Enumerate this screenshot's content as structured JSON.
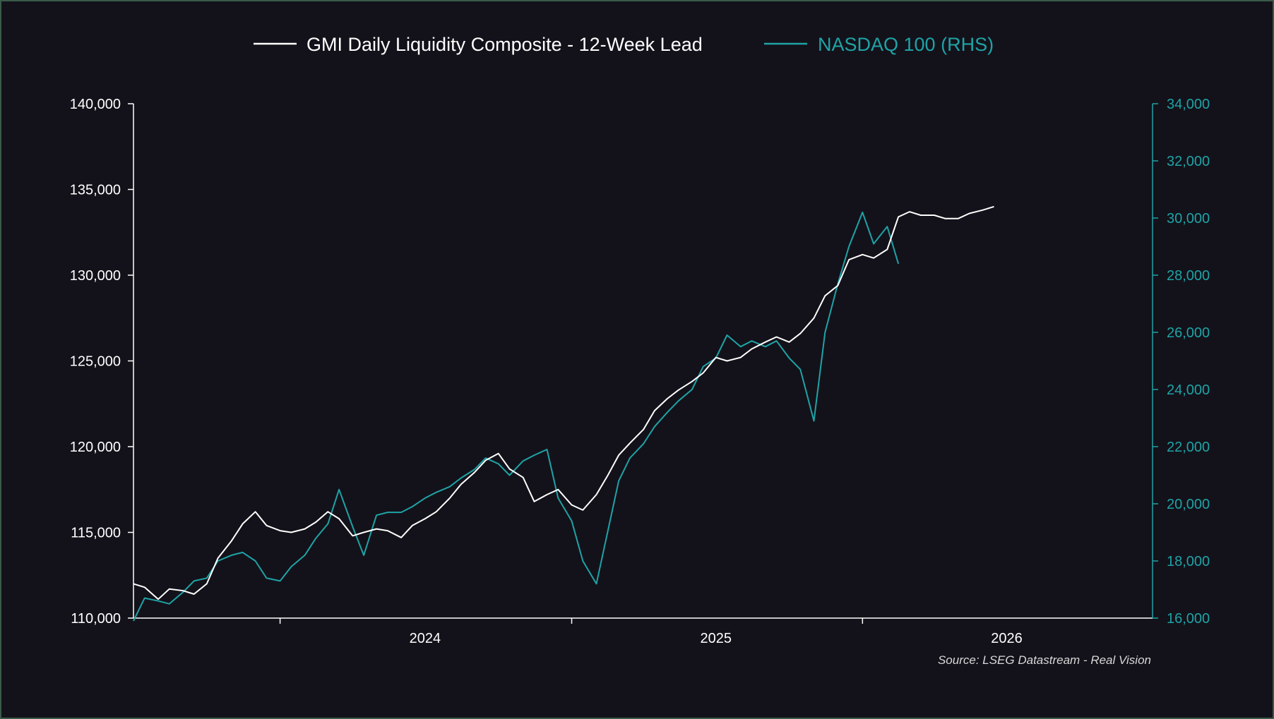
{
  "chart_data": {
    "type": "line",
    "legend_position": "top-center",
    "grid": false,
    "source": "Source: LSEG Datastream - Real Vision",
    "x_axis": {
      "range": [
        "2023-07-01",
        "2026-12-31"
      ],
      "tick_labels": [
        "2024",
        "2025",
        "2026"
      ]
    },
    "y_left": {
      "range": [
        110000,
        140000
      ],
      "ticks": [
        110000,
        115000,
        120000,
        125000,
        130000,
        135000,
        140000
      ],
      "tick_labels": [
        "110,000",
        "115,000",
        "120,000",
        "125,000",
        "130,000",
        "135,000",
        "140,000"
      ]
    },
    "y_right": {
      "range": [
        16000,
        34000
      ],
      "ticks": [
        16000,
        18000,
        20000,
        22000,
        24000,
        26000,
        28000,
        30000,
        32000,
        34000
      ],
      "tick_labels": [
        "16,000",
        "18,000",
        "20,000",
        "22,000",
        "24,000",
        "26,000",
        "28,000",
        "30,000",
        "32,000",
        "34,000"
      ]
    },
    "series": [
      {
        "name": "GMI Daily Liquidity Composite - 12-Week Lead",
        "axis": "left",
        "color": "#ffffff",
        "points": [
          [
            "2023-07-01",
            112000
          ],
          [
            "2023-07-15",
            111800
          ],
          [
            "2023-08-01",
            111100
          ],
          [
            "2023-08-15",
            111700
          ],
          [
            "2023-09-01",
            111600
          ],
          [
            "2023-09-15",
            111400
          ],
          [
            "2023-10-01",
            112000
          ],
          [
            "2023-10-15",
            113500
          ],
          [
            "2023-11-01",
            114500
          ],
          [
            "2023-11-15",
            115500
          ],
          [
            "2023-12-01",
            116200
          ],
          [
            "2023-12-15",
            115400
          ],
          [
            "2024-01-01",
            115100
          ],
          [
            "2024-01-15",
            115000
          ],
          [
            "2024-02-01",
            115200
          ],
          [
            "2024-02-15",
            115600
          ],
          [
            "2024-03-01",
            116200
          ],
          [
            "2024-03-15",
            115800
          ],
          [
            "2024-04-01",
            114800
          ],
          [
            "2024-04-15",
            115000
          ],
          [
            "2024-05-01",
            115200
          ],
          [
            "2024-05-15",
            115100
          ],
          [
            "2024-06-01",
            114700
          ],
          [
            "2024-06-15",
            115400
          ],
          [
            "2024-07-01",
            115800
          ],
          [
            "2024-07-15",
            116200
          ],
          [
            "2024-08-01",
            117000
          ],
          [
            "2024-08-15",
            117800
          ],
          [
            "2024-09-01",
            118500
          ],
          [
            "2024-09-15",
            119200
          ],
          [
            "2024-10-01",
            119600
          ],
          [
            "2024-10-15",
            118700
          ],
          [
            "2024-11-01",
            118200
          ],
          [
            "2024-11-15",
            116800
          ],
          [
            "2024-12-01",
            117200
          ],
          [
            "2024-12-15",
            117500
          ],
          [
            "2025-01-01",
            116600
          ],
          [
            "2025-01-15",
            116300
          ],
          [
            "2025-02-01",
            117200
          ],
          [
            "2025-02-15",
            118300
          ],
          [
            "2025-03-01",
            119500
          ],
          [
            "2025-03-15",
            120200
          ],
          [
            "2025-04-01",
            121000
          ],
          [
            "2025-04-15",
            122100
          ],
          [
            "2025-05-01",
            122800
          ],
          [
            "2025-05-15",
            123300
          ],
          [
            "2025-06-01",
            123800
          ],
          [
            "2025-06-15",
            124300
          ],
          [
            "2025-07-01",
            125200
          ],
          [
            "2025-07-15",
            125000
          ],
          [
            "2025-08-01",
            125200
          ],
          [
            "2025-08-15",
            125700
          ],
          [
            "2025-09-01",
            126100
          ],
          [
            "2025-09-15",
            126400
          ],
          [
            "2025-10-01",
            126100
          ],
          [
            "2025-10-15",
            126600
          ],
          [
            "2025-11-01",
            127500
          ],
          [
            "2025-11-15",
            128800
          ],
          [
            "2025-12-01",
            129400
          ],
          [
            "2025-12-15",
            130900
          ],
          [
            "2026-01-01",
            131200
          ],
          [
            "2026-01-15",
            131000
          ],
          [
            "2026-02-01",
            131500
          ],
          [
            "2026-02-15",
            133400
          ],
          [
            "2026-03-01",
            133700
          ],
          [
            "2026-03-15",
            133500
          ],
          [
            "2026-04-01",
            133500
          ],
          [
            "2026-04-15",
            133300
          ],
          [
            "2026-05-01",
            133300
          ],
          [
            "2026-05-15",
            133600
          ],
          [
            "2026-06-01",
            133800
          ],
          [
            "2026-06-15",
            134000
          ]
        ]
      },
      {
        "name": "NASDAQ 100 (RHS)",
        "axis": "right",
        "color": "#1fa3a6",
        "points": [
          [
            "2023-07-01",
            15900
          ],
          [
            "2023-07-15",
            16700
          ],
          [
            "2023-08-01",
            16600
          ],
          [
            "2023-08-15",
            16500
          ],
          [
            "2023-09-01",
            16900
          ],
          [
            "2023-09-15",
            17300
          ],
          [
            "2023-10-01",
            17400
          ],
          [
            "2023-10-15",
            18000
          ],
          [
            "2023-11-01",
            18200
          ],
          [
            "2023-11-15",
            18300
          ],
          [
            "2023-12-01",
            18000
          ],
          [
            "2023-12-15",
            17400
          ],
          [
            "2024-01-01",
            17300
          ],
          [
            "2024-01-15",
            17800
          ],
          [
            "2024-02-01",
            18200
          ],
          [
            "2024-02-15",
            18800
          ],
          [
            "2024-03-01",
            19300
          ],
          [
            "2024-03-15",
            20500
          ],
          [
            "2024-04-01",
            19200
          ],
          [
            "2024-04-15",
            18200
          ],
          [
            "2024-05-01",
            19600
          ],
          [
            "2024-05-15",
            19700
          ],
          [
            "2024-06-01",
            19700
          ],
          [
            "2024-06-15",
            19900
          ],
          [
            "2024-07-01",
            20200
          ],
          [
            "2024-07-15",
            20400
          ],
          [
            "2024-08-01",
            20600
          ],
          [
            "2024-08-15",
            20900
          ],
          [
            "2024-09-01",
            21200
          ],
          [
            "2024-09-15",
            21600
          ],
          [
            "2024-10-01",
            21400
          ],
          [
            "2024-10-15",
            21000
          ],
          [
            "2024-11-01",
            21500
          ],
          [
            "2024-11-15",
            21700
          ],
          [
            "2024-12-01",
            21900
          ],
          [
            "2024-12-15",
            20200
          ],
          [
            "2025-01-01",
            19400
          ],
          [
            "2025-01-15",
            18000
          ],
          [
            "2025-02-01",
            17200
          ],
          [
            "2025-02-15",
            19000
          ],
          [
            "2025-03-01",
            20800
          ],
          [
            "2025-03-15",
            21600
          ],
          [
            "2025-04-01",
            22100
          ],
          [
            "2025-04-15",
            22700
          ],
          [
            "2025-05-01",
            23200
          ],
          [
            "2025-05-15",
            23600
          ],
          [
            "2025-06-01",
            24000
          ],
          [
            "2025-06-15",
            24800
          ],
          [
            "2025-07-01",
            25100
          ],
          [
            "2025-07-15",
            25900
          ],
          [
            "2025-08-01",
            25500
          ],
          [
            "2025-08-15",
            25700
          ],
          [
            "2025-09-01",
            25500
          ],
          [
            "2025-09-15",
            25700
          ],
          [
            "2025-10-01",
            25100
          ],
          [
            "2025-10-15",
            24700
          ],
          [
            "2025-11-01",
            22900
          ],
          [
            "2025-11-15",
            26000
          ],
          [
            "2025-12-01",
            27700
          ],
          [
            "2025-12-15",
            29000
          ],
          [
            "2026-01-01",
            30200
          ],
          [
            "2026-01-15",
            29100
          ],
          [
            "2026-02-01",
            29700
          ],
          [
            "2026-02-15",
            28400
          ]
        ]
      }
    ]
  }
}
